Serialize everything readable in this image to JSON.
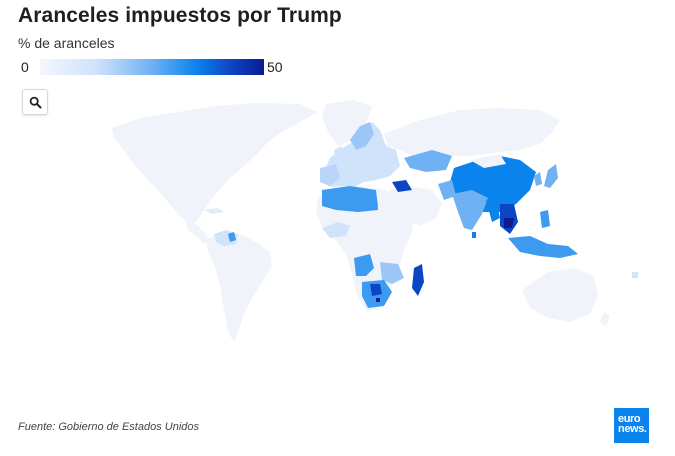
{
  "title": "Aranceles impuestos por Trump",
  "subtitle": "% de aranceles",
  "legend": {
    "min": "0",
    "max": "50"
  },
  "search_icon": "search-icon",
  "source": "Fuente: Gobierno de Estados Unidos",
  "logo": {
    "line1": "euro",
    "line2": "news."
  },
  "colors": {
    "no_data": "#f1f3fb",
    "low": "#cfe3fb",
    "mid": "#3c9af0",
    "high": "#0a83ec",
    "top": "#0d2fb0",
    "brand": "#0a83ec"
  }
}
